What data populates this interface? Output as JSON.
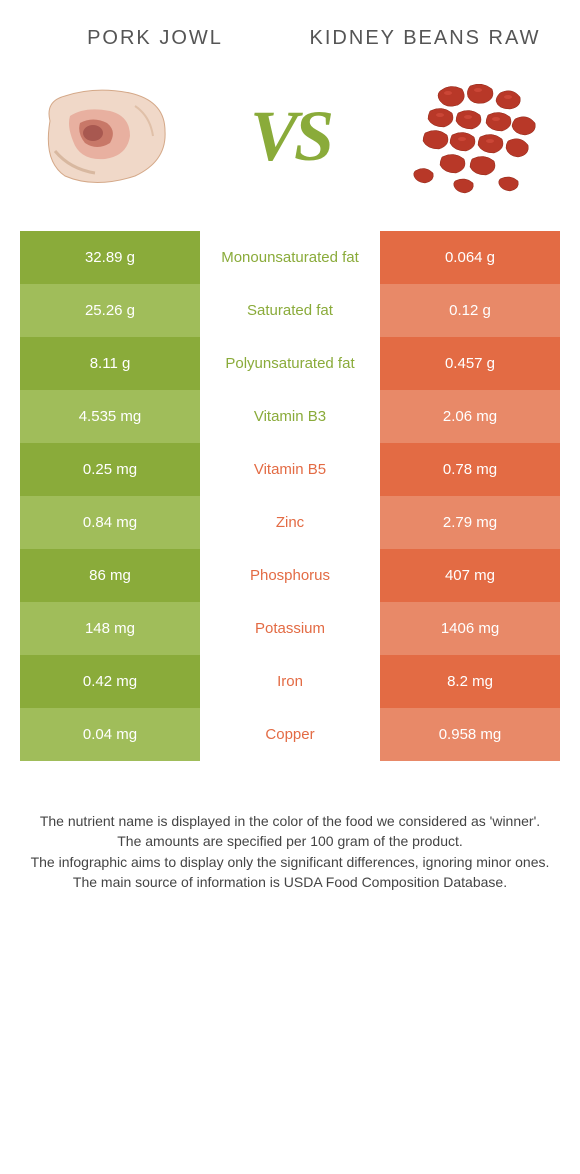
{
  "header": {
    "left_title": "Pork Jowl",
    "right_title": "Kidney beans raw",
    "vs": "VS"
  },
  "colors": {
    "green": "#8aab3a",
    "green_alt": "#a0bd5a",
    "orange": "#e36b44",
    "orange_alt": "#e88968",
    "bg": "#ffffff"
  },
  "rows": [
    {
      "left": "32.89 g",
      "label": "Monounsaturated fat",
      "right": "0.064 g",
      "winner": "left"
    },
    {
      "left": "25.26 g",
      "label": "Saturated fat",
      "right": "0.12 g",
      "winner": "left"
    },
    {
      "left": "8.11 g",
      "label": "Polyunsaturated fat",
      "right": "0.457 g",
      "winner": "left"
    },
    {
      "left": "4.535 mg",
      "label": "Vitamin B3",
      "right": "2.06 mg",
      "winner": "left"
    },
    {
      "left": "0.25 mg",
      "label": "Vitamin B5",
      "right": "0.78 mg",
      "winner": "right"
    },
    {
      "left": "0.84 mg",
      "label": "Zinc",
      "right": "2.79 mg",
      "winner": "right"
    },
    {
      "left": "86 mg",
      "label": "Phosphorus",
      "right": "407 mg",
      "winner": "right"
    },
    {
      "left": "148 mg",
      "label": "Potassium",
      "right": "1406 mg",
      "winner": "right"
    },
    {
      "left": "0.42 mg",
      "label": "Iron",
      "right": "8.2 mg",
      "winner": "right"
    },
    {
      "left": "0.04 mg",
      "label": "Copper",
      "right": "0.958 mg",
      "winner": "right"
    }
  ],
  "footer": {
    "line1": "The nutrient name is displayed in the color of the food we considered as 'winner'.",
    "line2": "The amounts are specified per 100 gram of the product.",
    "line3": "The infographic aims to display only the significant differences, ignoring minor ones.",
    "line4": "The main source of information is USDA Food Composition Database."
  }
}
